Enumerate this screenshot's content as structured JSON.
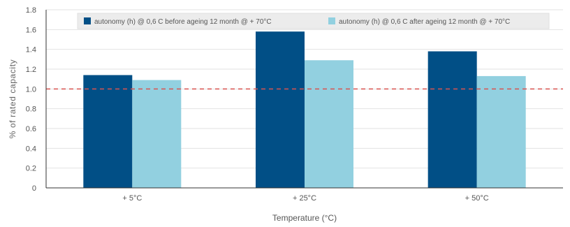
{
  "chart_data": {
    "type": "bar",
    "title": "",
    "xlabel": "Temperature (°C)",
    "ylabel": "% of rated capacity",
    "categories": [
      "+ 5°C",
      "+ 25°C",
      "+ 50°C"
    ],
    "series": [
      {
        "name": "autonomy (h) @ 0,6 C before ageing 12 month @ + 70°C",
        "values": [
          1.14,
          1.58,
          1.38
        ],
        "color": "#014f86"
      },
      {
        "name": "autonomy (h) @ 0,6 C after ageing 12 month @ + 70°C",
        "values": [
          1.09,
          1.29,
          1.13
        ],
        "color": "#92d0e0"
      }
    ],
    "ylim": [
      0,
      1.8
    ],
    "yticks": [
      "0",
      "0.2",
      "0.4",
      "0.6",
      "0.8",
      "1.0",
      "1.2",
      "1.4",
      "1.6",
      "1.8"
    ],
    "reference_line": {
      "value": 1.0,
      "color": "#d9534f",
      "style": "dashed"
    },
    "grid": true,
    "grid_color": "#e2e2e2",
    "legend": "top"
  }
}
